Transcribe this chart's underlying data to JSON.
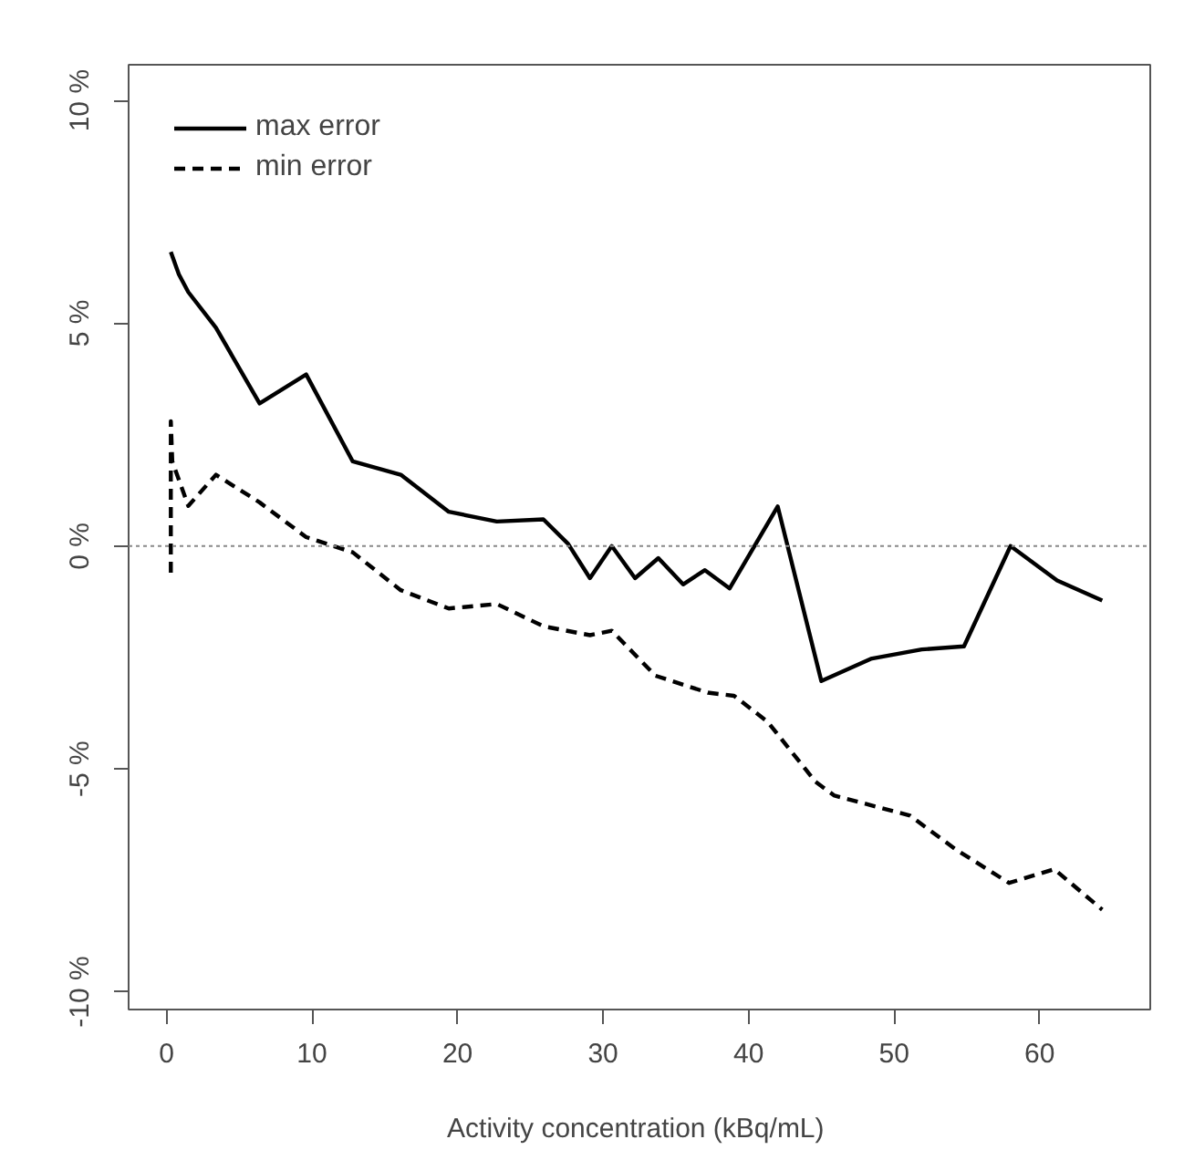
{
  "chart_data": {
    "type": "line",
    "xlabel": "Activity  concentration (kBq/mL)",
    "xlim": [
      -2.6,
      67.6
    ],
    "xticks": [
      0,
      10,
      20,
      30,
      40,
      50,
      60
    ],
    "ylim": [
      -10.4,
      10.8
    ],
    "yticks": [
      {
        "value": -10,
        "label": "-10 %"
      },
      {
        "value": -5,
        "label": "-5 %"
      },
      {
        "value": 0,
        "label": "0 %"
      },
      {
        "value": 5,
        "label": "5 %"
      },
      {
        "value": 10,
        "label": "10 %"
      }
    ],
    "grid": false,
    "legend": "top left",
    "marker": "none",
    "ref_lines": [
      {
        "axis": "y",
        "value": 0,
        "color": "#888888",
        "line_style": "dotted"
      }
    ],
    "series": [
      {
        "name": "max error",
        "color": "#000000",
        "line_style": "solid",
        "x": [
          0.3,
          0.85,
          1.5,
          3.4,
          6.4,
          9.6,
          12.8,
          16.1,
          19.4,
          22.7,
          25.9,
          27.6,
          29.1,
          30.6,
          32.2,
          33.8,
          35.5,
          37.0,
          38.7,
          42.0,
          45.0,
          48.4,
          51.9,
          54.8,
          58.0,
          61.2,
          64.3
        ],
        "values": [
          6.6,
          6.1,
          5.7,
          4.9,
          3.2,
          3.85,
          1.9,
          1.6,
          0.77,
          0.55,
          0.6,
          0.05,
          -0.72,
          0,
          -0.72,
          -0.27,
          -0.86,
          -0.54,
          -0.95,
          0.89,
          -3.03,
          -2.53,
          -2.32,
          -2.25,
          0,
          -0.77,
          -1.22
        ]
      },
      {
        "name": "min error",
        "color": "#000000",
        "line_style": "dashed",
        "x": [
          0.3,
          0.3,
          0.4,
          1.5,
          3.4,
          6.4,
          9.6,
          12.8,
          16.1,
          19.4,
          22.7,
          25.9,
          29.1,
          30.6,
          33.6,
          37.2,
          39.0,
          41.3,
          44.6,
          45.9,
          51.1,
          54.2,
          57.9,
          61.0,
          64.3
        ],
        "values": [
          -0.6,
          2.8,
          1.9,
          0.9,
          1.6,
          0.98,
          0.2,
          -0.14,
          -0.99,
          -1.4,
          -1.3,
          -1.8,
          -2.0,
          -1.9,
          -2.91,
          -3.29,
          -3.36,
          -3.94,
          -5.29,
          -5.6,
          -6.05,
          -6.8,
          -7.56,
          -7.25,
          -8.16
        ]
      }
    ]
  }
}
